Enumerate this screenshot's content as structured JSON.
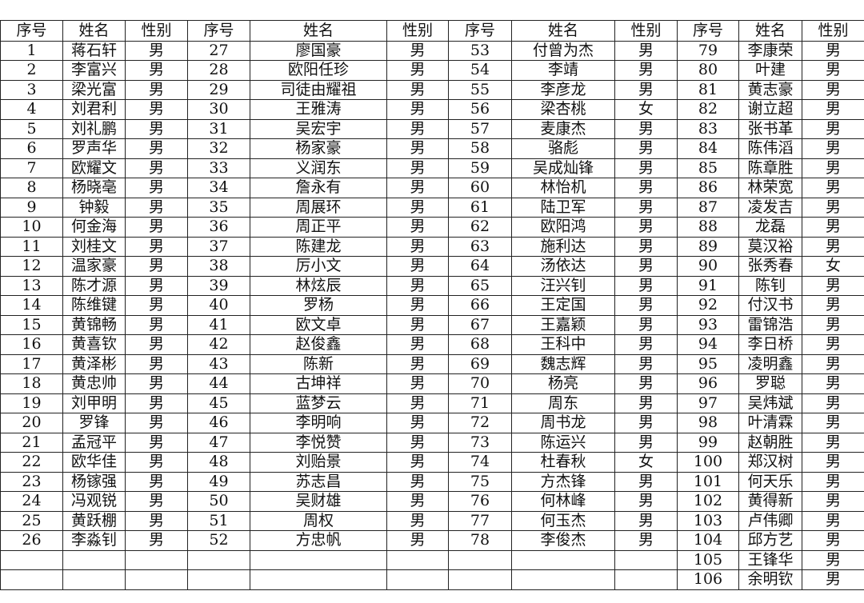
{
  "headers": [
    "序号",
    "姓名",
    "性别",
    "序号",
    "姓名",
    "性别",
    "序号",
    "姓名",
    "性别",
    "序号",
    "姓名",
    "性别"
  ],
  "blocks": [
    [
      [
        "1",
        "蒋石轩",
        "男"
      ],
      [
        "2",
        "李富兴",
        "男"
      ],
      [
        "3",
        "梁光富",
        "男"
      ],
      [
        "4",
        "刘君利",
        "男"
      ],
      [
        "5",
        "刘礼鹏",
        "男"
      ],
      [
        "6",
        "罗声华",
        "男"
      ],
      [
        "7",
        "欧耀文",
        "男"
      ],
      [
        "8",
        "杨晓亳",
        "男"
      ],
      [
        "9",
        "钟毅",
        "男"
      ],
      [
        "10",
        "何金海",
        "男"
      ],
      [
        "11",
        "刘桂文",
        "男"
      ],
      [
        "12",
        "温家豪",
        "男"
      ],
      [
        "13",
        "陈才源",
        "男"
      ],
      [
        "14",
        "陈维键",
        "男"
      ],
      [
        "15",
        "黄锦畅",
        "男"
      ],
      [
        "16",
        "黄喜钦",
        "男"
      ],
      [
        "17",
        "黄泽彬",
        "男"
      ],
      [
        "18",
        "黄忠帅",
        "男"
      ],
      [
        "19",
        "刘甲明",
        "男"
      ],
      [
        "20",
        "罗锋",
        "男"
      ],
      [
        "21",
        "孟冠平",
        "男"
      ],
      [
        "22",
        "欧华佳",
        "男"
      ],
      [
        "23",
        "杨镓强",
        "男"
      ],
      [
        "24",
        "冯观锐",
        "男"
      ],
      [
        "25",
        "黄跃棚",
        "男"
      ],
      [
        "26",
        "李淼钊",
        "男"
      ]
    ],
    [
      [
        "27",
        "廖国豪",
        "男"
      ],
      [
        "28",
        "欧阳任珍",
        "男"
      ],
      [
        "29",
        "司徒由耀祖",
        "男"
      ],
      [
        "30",
        "王雅涛",
        "男"
      ],
      [
        "31",
        "吴宏宇",
        "男"
      ],
      [
        "32",
        "杨家豪",
        "男"
      ],
      [
        "33",
        "义润东",
        "男"
      ],
      [
        "34",
        "詹永有",
        "男"
      ],
      [
        "35",
        "周展环",
        "男"
      ],
      [
        "36",
        "周正平",
        "男"
      ],
      [
        "37",
        "陈建龙",
        "男"
      ],
      [
        "38",
        "厉小文",
        "男"
      ],
      [
        "39",
        "林炫辰",
        "男"
      ],
      [
        "40",
        "罗杨",
        "男"
      ],
      [
        "41",
        "欧文卓",
        "男"
      ],
      [
        "42",
        "赵俊鑫",
        "男"
      ],
      [
        "43",
        "陈新",
        "男"
      ],
      [
        "44",
        "古坤祥",
        "男"
      ],
      [
        "45",
        "蓝梦云",
        "男"
      ],
      [
        "46",
        "李明响",
        "男"
      ],
      [
        "47",
        "李悦赞",
        "男"
      ],
      [
        "48",
        "刘贻景",
        "男"
      ],
      [
        "49",
        "苏志昌",
        "男"
      ],
      [
        "50",
        "吴财雄",
        "男"
      ],
      [
        "51",
        "周权",
        "男"
      ],
      [
        "52",
        "方忠帆",
        "男"
      ]
    ],
    [
      [
        "53",
        "付曾为杰",
        "男"
      ],
      [
        "54",
        "李靖",
        "男"
      ],
      [
        "55",
        "李彦龙",
        "男"
      ],
      [
        "56",
        "梁杏桃",
        "女"
      ],
      [
        "57",
        "麦康杰",
        "男"
      ],
      [
        "58",
        "骆彪",
        "男"
      ],
      [
        "59",
        "吴成灿锋",
        "男"
      ],
      [
        "60",
        "林怡机",
        "男"
      ],
      [
        "61",
        "陆卫军",
        "男"
      ],
      [
        "62",
        "欧阳鸿",
        "男"
      ],
      [
        "63",
        "施利达",
        "男"
      ],
      [
        "64",
        "汤依达",
        "男"
      ],
      [
        "65",
        "汪兴钊",
        "男"
      ],
      [
        "66",
        "王定国",
        "男"
      ],
      [
        "67",
        "王嘉颖",
        "男"
      ],
      [
        "68",
        "王科中",
        "男"
      ],
      [
        "69",
        "魏志辉",
        "男"
      ],
      [
        "70",
        "杨亮",
        "男"
      ],
      [
        "71",
        "周东",
        "男"
      ],
      [
        "72",
        "周书龙",
        "男"
      ],
      [
        "73",
        "陈运兴",
        "男"
      ],
      [
        "74",
        "杜春秋",
        "女"
      ],
      [
        "75",
        "方杰锋",
        "男"
      ],
      [
        "76",
        "何林峰",
        "男"
      ],
      [
        "77",
        "何玉杰",
        "男"
      ],
      [
        "78",
        "李俊杰",
        "男"
      ]
    ],
    [
      [
        "79",
        "李康荣",
        "男"
      ],
      [
        "80",
        "叶建",
        "男"
      ],
      [
        "81",
        "黄志豪",
        "男"
      ],
      [
        "82",
        "谢立超",
        "男"
      ],
      [
        "83",
        "张书革",
        "男"
      ],
      [
        "84",
        "陈伟滔",
        "男"
      ],
      [
        "85",
        "陈章胜",
        "男"
      ],
      [
        "86",
        "林荣宽",
        "男"
      ],
      [
        "87",
        "凌发吉",
        "男"
      ],
      [
        "88",
        "龙磊",
        "男"
      ],
      [
        "89",
        "莫汉裕",
        "男"
      ],
      [
        "90",
        "张秀春",
        "女"
      ],
      [
        "91",
        "陈钊",
        "男"
      ],
      [
        "92",
        "付汉书",
        "男"
      ],
      [
        "93",
        "雷锦浩",
        "男"
      ],
      [
        "94",
        "李日桥",
        "男"
      ],
      [
        "95",
        "凌明鑫",
        "男"
      ],
      [
        "96",
        "罗聪",
        "男"
      ],
      [
        "97",
        "吴炜斌",
        "男"
      ],
      [
        "98",
        "叶清霖",
        "男"
      ],
      [
        "99",
        "赵朝胜",
        "男"
      ],
      [
        "100",
        "郑汉树",
        "男"
      ],
      [
        "101",
        "何天乐",
        "男"
      ],
      [
        "102",
        "黄得新",
        "男"
      ],
      [
        "103",
        "卢伟卿",
        "男"
      ],
      [
        "104",
        "邱方艺",
        "男"
      ],
      [
        "105",
        "王锋华",
        "男"
      ],
      [
        "106",
        "余明钦",
        "男"
      ]
    ]
  ]
}
